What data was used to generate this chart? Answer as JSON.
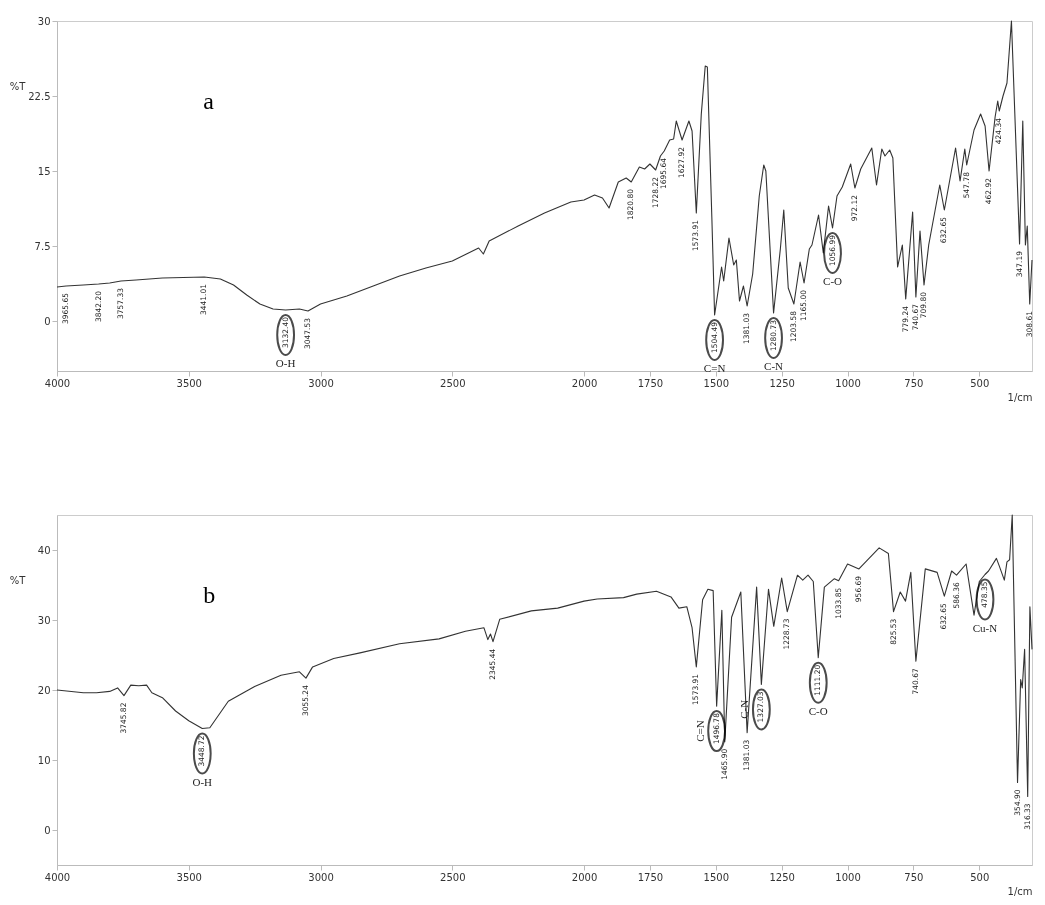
{
  "chart_data": [
    {
      "type": "line",
      "title": "a",
      "xlabel": "1/cm",
      "ylabel": "%T",
      "grid": false,
      "xlim": [
        4000,
        300
      ],
      "ylim": [
        -5,
        30
      ],
      "xticks": [
        4000,
        3500,
        3000,
        2500,
        2000,
        1750,
        1500,
        1250,
        1000,
        750,
        500
      ],
      "yticks": [
        0,
        7.5,
        15,
        22.5,
        30
      ],
      "x": [
        4000,
        3965.65,
        3900,
        3842.2,
        3800,
        3757.33,
        3700,
        3600,
        3441.01,
        3380,
        3330,
        3280,
        3230,
        3180,
        3132.4,
        3080,
        3047.53,
        3000,
        2900,
        2800,
        2700,
        2600,
        2500,
        2400,
        2382,
        2360,
        2250,
        2150,
        2050,
        2000,
        1960,
        1930,
        1905,
        1870,
        1840,
        1820.8,
        1790,
        1770,
        1750,
        1728.22,
        1710,
        1695.64,
        1675,
        1660,
        1650,
        1627.92,
        1602,
        1590,
        1573.91,
        1555,
        1540,
        1532,
        1515,
        1504.49,
        1478,
        1470,
        1450,
        1432,
        1422,
        1410,
        1395,
        1381.03,
        1360,
        1335,
        1318,
        1310,
        1280.73,
        1255,
        1242,
        1225,
        1203.58,
        1180,
        1165,
        1145,
        1135,
        1110,
        1092,
        1072,
        1056.99,
        1040,
        1020,
        988,
        972.12,
        950,
        908,
        890,
        870,
        858,
        840,
        828,
        810,
        792,
        779.24,
        753,
        740.67,
        725,
        709.8,
        692,
        650,
        632.65,
        590,
        573,
        555,
        547.78,
        520,
        495,
        478,
        462.92,
        440,
        430,
        424.34,
        410,
        395,
        378,
        347.19,
        335,
        325,
        318,
        308.61,
        300
      ],
      "series": [
        {
          "color": "#333333",
          "values": [
            3.4,
            3.5,
            3.6,
            3.7,
            3.8,
            4.0,
            4.1,
            4.3,
            4.4,
            4.2,
            3.6,
            2.6,
            1.7,
            1.2,
            1.1,
            1.2,
            1.0,
            1.7,
            2.5,
            3.5,
            4.5,
            5.3,
            6.0,
            7.3,
            6.7,
            8.0,
            9.5,
            10.8,
            11.9,
            12.1,
            12.6,
            12.3,
            11.3,
            13.9,
            14.3,
            13.9,
            15.4,
            15.2,
            15.7,
            15.1,
            16.5,
            17.0,
            18.1,
            18.2,
            20.0,
            18.1,
            20.0,
            19.0,
            10.8,
            20.7,
            25.5,
            25.4,
            10.4,
            0.6,
            5.4,
            4.0,
            8.3,
            5.6,
            6.1,
            2.0,
            3.5,
            1.5,
            4.7,
            12.5,
            15.6,
            15.0,
            0.8,
            7.2,
            11.1,
            3.3,
            1.7,
            5.9,
            3.8,
            7.2,
            7.6,
            10.6,
            6.8,
            11.5,
            9.3,
            12.5,
            13.4,
            15.7,
            13.3,
            15.2,
            17.3,
            13.6,
            17.2,
            16.5,
            17.1,
            16.3,
            5.4,
            7.6,
            2.2,
            10.9,
            2.4,
            9.0,
            3.6,
            7.6,
            13.6,
            11.1,
            17.3,
            14.0,
            17.2,
            15.6,
            19.1,
            20.7,
            19.5,
            15.0,
            20.4,
            22.0,
            21.0,
            22.5,
            23.8,
            30.0,
            7.7,
            20.0,
            7.6,
            9.5,
            1.7,
            6.1
          ]
        }
      ],
      "annotations": [
        {
          "text": "3965.65",
          "x": 3965.65,
          "y": 3.5
        },
        {
          "text": "3842.20",
          "x": 3842.2,
          "y": 3.7
        },
        {
          "text": "3757.33",
          "x": 3757.33,
          "y": 4.0
        },
        {
          "text": "3441.01",
          "x": 3441.01,
          "y": 4.4
        },
        {
          "text": "3132.40",
          "x": 3132.4,
          "y": 1.1
        },
        "O-H",
        {
          "text": "3047.53",
          "x": 3047.53,
          "y": 1.0
        },
        {
          "text": "1820.80",
          "x": 1820.8,
          "y": 13.9
        },
        {
          "text": "1728.22",
          "x": 1728.22,
          "y": 15.1
        },
        {
          "text": "1695.64",
          "x": 1695.64,
          "y": 17.0
        },
        {
          "text": "1627.92",
          "x": 1627.92,
          "y": 18.1
        },
        {
          "text": "1573.91",
          "x": 1573.91,
          "y": 10.8
        },
        {
          "text": "1504.49",
          "x": 1504.49,
          "y": 0.6
        },
        "C=N",
        {
          "text": "1381.03",
          "x": 1381.03,
          "y": 1.5
        },
        {
          "text": "1280.73",
          "x": 1280.73,
          "y": 0.8
        },
        "C-N",
        {
          "text": "1203.58",
          "x": 1203.58,
          "y": 1.7
        },
        {
          "text": "1165.00",
          "x": 1165,
          "y": 3.8
        },
        {
          "text": "1056.99",
          "x": 1056.99,
          "y": 9.3
        },
        "C-O",
        {
          "text": "972.12",
          "x": 972.12,
          "y": 13.3
        },
        {
          "text": "779.24",
          "x": 779.24,
          "y": 2.2
        },
        {
          "text": "740.67",
          "x": 740.67,
          "y": 2.4
        },
        {
          "text": "709.80",
          "x": 709.8,
          "y": 3.6
        },
        {
          "text": "632.65",
          "x": 632.65,
          "y": 11.1
        },
        {
          "text": "547.78",
          "x": 547.78,
          "y": 15.6
        },
        {
          "text": "462.92",
          "x": 462.92,
          "y": 15.0
        },
        {
          "text": "424.34",
          "x": 424.34,
          "y": 21.0
        },
        {
          "text": "347.19",
          "x": 347.19,
          "y": 7.7
        },
        {
          "text": "308.61",
          "x": 308.61,
          "y": 1.7
        }
      ]
    },
    {
      "type": "line",
      "title": "b",
      "xlabel": "1/cm",
      "ylabel": "%T",
      "grid": false,
      "xlim": [
        4000,
        300
      ],
      "ylim": [
        -5,
        45
      ],
      "xticks": [
        4000,
        3500,
        3000,
        2500,
        2000,
        1750,
        1500,
        1250,
        1000,
        750,
        500
      ],
      "yticks": [
        0,
        10,
        20,
        30,
        40
      ],
      "x": [
        4000,
        3900,
        3850,
        3800,
        3770,
        3745.82,
        3720,
        3690,
        3660,
        3640,
        3600,
        3550,
        3500,
        3448.72,
        3420,
        3350,
        3250,
        3150,
        3080,
        3055.24,
        3030,
        2950,
        2850,
        2700,
        2550,
        2450,
        2380,
        2365,
        2355,
        2345.44,
        2320,
        2200,
        2100,
        2000,
        1950,
        1850,
        1800,
        1725,
        1670,
        1640,
        1610,
        1590,
        1573.91,
        1550,
        1530,
        1510,
        1496.78,
        1477,
        1465.9,
        1440,
        1405,
        1381.03,
        1345,
        1327.03,
        1300,
        1280,
        1250,
        1228.73,
        1190,
        1170,
        1150,
        1130,
        1111.2,
        1088,
        1050,
        1033.85,
        1000,
        956.69,
        880,
        845,
        825.53,
        800,
        780,
        760,
        740.67,
        705,
        660,
        632.65,
        605,
        586.36,
        550,
        520,
        500,
        478.35,
        465,
        435,
        425,
        405,
        395,
        385,
        375,
        354.9,
        343,
        337,
        328,
        316.33,
        308,
        300
      ],
      "series": [
        {
          "color": "#333333",
          "values": [
            20.0,
            19.6,
            19.6,
            19.8,
            20.3,
            19.2,
            20.7,
            20.6,
            20.7,
            19.6,
            18.9,
            17.0,
            15.6,
            14.5,
            14.6,
            18.4,
            20.5,
            22.1,
            22.6,
            21.7,
            23.3,
            24.5,
            25.3,
            26.6,
            27.3,
            28.4,
            28.9,
            27.2,
            28.0,
            26.9,
            30.1,
            31.3,
            31.7,
            32.7,
            33.0,
            33.2,
            33.7,
            34.1,
            33.3,
            31.7,
            31.9,
            28.9,
            23.3,
            32.9,
            34.4,
            34.2,
            17.7,
            31.4,
            12.6,
            30.4,
            34.0,
            13.9,
            34.7,
            20.8,
            34.4,
            29.1,
            36.0,
            31.2,
            36.4,
            35.7,
            36.4,
            35.5,
            24.6,
            34.7,
            35.9,
            35.6,
            38.0,
            37.3,
            40.3,
            39.5,
            31.2,
            34.0,
            32.7,
            36.8,
            24.1,
            37.3,
            36.8,
            33.4,
            37.0,
            36.4,
            38.0,
            30.7,
            35.5,
            36.5,
            37.0,
            38.8,
            37.8,
            35.7,
            38.3,
            38.6,
            45.0,
            6.8,
            21.5,
            20.3,
            25.8,
            4.8,
            31.9,
            25.8
          ]
        }
      ],
      "annotations": [
        {
          "text": "3745.82",
          "x": 3745.82,
          "y": 19.2
        },
        {
          "text": "3448.72",
          "x": 3448.72,
          "y": 14.5
        },
        "O-H",
        {
          "text": "3055.24",
          "x": 3055.24,
          "y": 21.7
        },
        {
          "text": "2345.44",
          "x": 2345.44,
          "y": 26.9
        },
        {
          "text": "1573.91",
          "x": 1573.91,
          "y": 23.3
        },
        {
          "text": "1496.78",
          "x": 1496.78,
          "y": 17.7
        },
        "C=N",
        {
          "text": "1465.90",
          "x": 1465.9,
          "y": 12.6
        },
        {
          "text": "1381.03",
          "x": 1381.03,
          "y": 13.9
        },
        {
          "text": "1327.03",
          "x": 1327.03,
          "y": 20.8
        },
        "C-N",
        {
          "text": "1228.73",
          "x": 1228.73,
          "y": 31.2
        },
        {
          "text": "1111.20",
          "x": 1111.2,
          "y": 24.6
        },
        "C-O",
        {
          "text": "1033.85",
          "x": 1033.85,
          "y": 35.6
        },
        {
          "text": "956.69",
          "x": 956.69,
          "y": 37.3
        },
        {
          "text": "825.53",
          "x": 825.53,
          "y": 31.2
        },
        {
          "text": "740.67",
          "x": 740.67,
          "y": 24.1
        },
        {
          "text": "632.65",
          "x": 632.65,
          "y": 33.4
        },
        {
          "text": "586.36",
          "x": 586.36,
          "y": 36.4
        },
        {
          "text": "478.35",
          "x": 478.35,
          "y": 36.5
        },
        "Cu-N",
        {
          "text": "354.90",
          "x": 354.9,
          "y": 6.8
        },
        {
          "text": "316.33",
          "x": 316.33,
          "y": 4.8
        }
      ]
    }
  ]
}
